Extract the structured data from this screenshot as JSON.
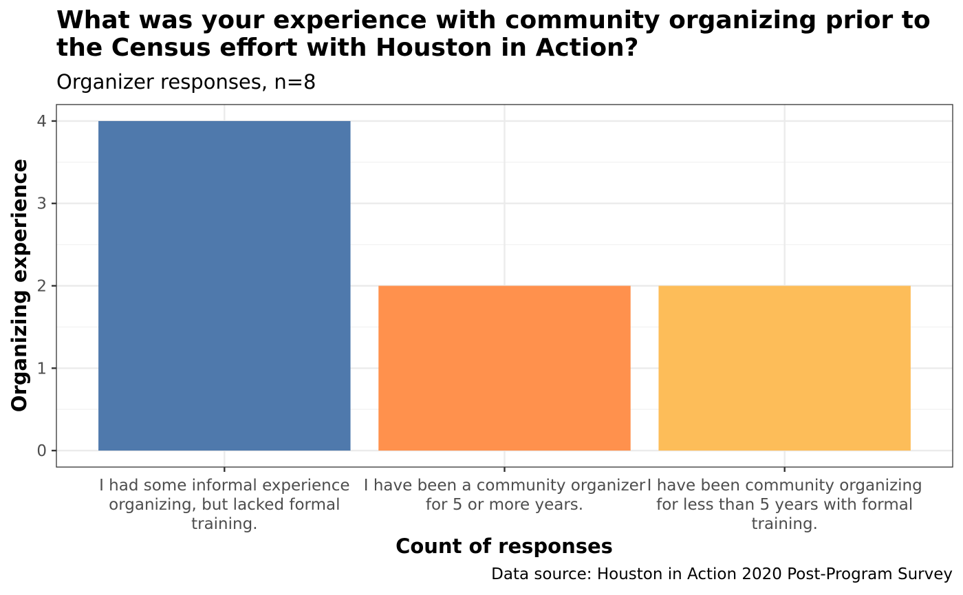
{
  "chart_data": {
    "type": "bar",
    "title_lines": [
      "What was your experience with community organizing prior to",
      "the Census effort with Houston in Action?"
    ],
    "subtitle": "Organizer responses, n=8",
    "xlabel": "Count of responses",
    "ylabel": "Organizing experience",
    "caption": "Data source: Houston in Action 2020 Post-Program Survey",
    "categories": [
      [
        "I had some informal experience",
        "organizing, but lacked formal",
        "training."
      ],
      [
        "I have been a community organizer",
        "for 5 or more years."
      ],
      [
        "I have been community organizing",
        "for less than 5 years with formal",
        "training."
      ]
    ],
    "values": [
      4,
      2,
      2
    ],
    "colors": [
      "#4f79ac",
      "#ff914d",
      "#fdbd59"
    ],
    "ylim": [
      -0.2,
      4.2
    ],
    "yticks": [
      0,
      1,
      2,
      3,
      4
    ],
    "grid": true,
    "legend": "none"
  }
}
